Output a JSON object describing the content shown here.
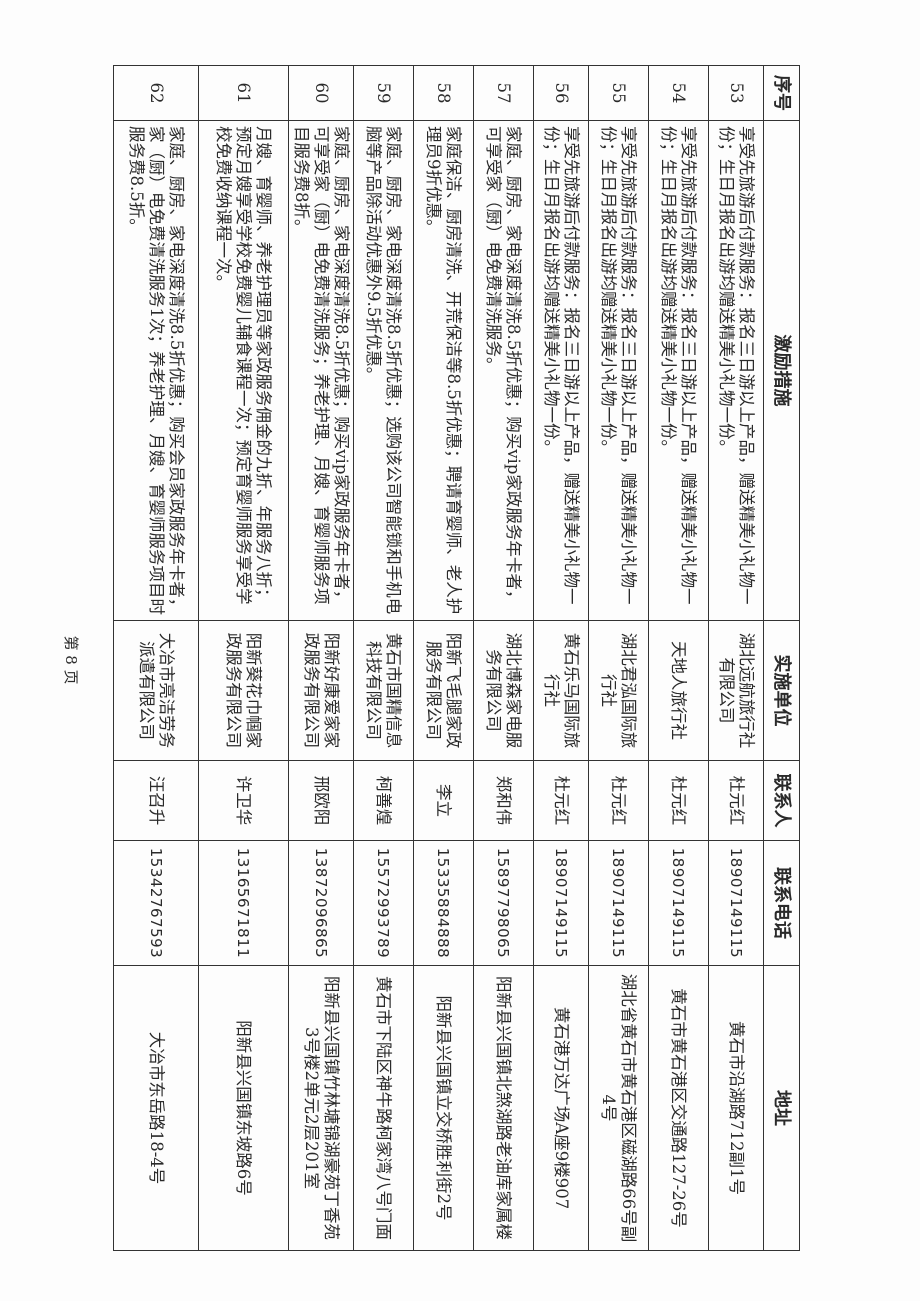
{
  "table": {
    "headers": [
      "序号",
      "激励措施",
      "实施单位",
      "联系人",
      "联系电话",
      "地址"
    ],
    "rows": [
      {
        "no": "53",
        "measure": "享受先旅游后付款服务：报名三日游以上产品，赠送精美小礼物一份；生日月报名出游均赠送精美小礼物一份。",
        "unit": "湖北远航旅行社有限公司",
        "contact": "杜元红",
        "phone": "18907149115",
        "address": "黄石市沿湖路712副1号"
      },
      {
        "no": "54",
        "measure": "享受先旅游后付款服务：报名三日游以上产品，赠送精美小礼物一份；生日月报名出游均赠送精美小礼物一份。",
        "unit": "天地人旅行社",
        "contact": "杜元红",
        "phone": "18907149115",
        "address": "黄石市黄石港区交通路127-26号"
      },
      {
        "no": "55",
        "measure": "享受先旅游后付款服务：报名三日游以上产品，赠送精美小礼物一份；生日月报名出游均赠送精美小礼物一份。",
        "unit": "湖北君泓国际旅行社",
        "contact": "杜元红",
        "phone": "18907149115",
        "address": "湖北省黄石市黄石港区磁湖路66号副4号"
      },
      {
        "no": "56",
        "measure": "享受先旅游后付款服务：报名三日游以上产品，赠送精美小礼物一份；生日月报名出游均赠送精美小礼物一份。",
        "unit": "黄石乐马国际旅行社",
        "contact": "杜元红",
        "phone": "18907149115",
        "address": "黄石港万达广场A座9楼907"
      },
      {
        "no": "57",
        "measure": "家庭、厨房、家电深度清洗8.5折优惠；购买vip家政服务年卡者，可享受家（厨）电免费清洗服务。",
        "unit": "湖北博森家电服务有限公司",
        "contact": "郑和伟",
        "phone": "15897798065",
        "address": "阳新县兴国镇北煞湖路老油库家属楼"
      },
      {
        "no": "58",
        "measure": "家庭保洁、厨房清洗、开荒保洁等8.5折优惠；聘请育婴师、老人护理员9折优惠。",
        "unit": "阳新飞毛腿家政服务有限公司",
        "contact": "李立",
        "phone": "15335884888",
        "address": "阳新县兴国镇立交桥胜利街2号"
      },
      {
        "no": "59",
        "measure": "家庭、厨房、家电深度清洗8.5折优惠；选购该公司智能锁和手机电脑等产品除活动优惠外9.5折优惠。",
        "unit": "黄石市国精信息科技有限公司",
        "contact": "柯善煌",
        "phone": "15572993789",
        "address": "黄石市下陆区神牛路柯家湾八号门面"
      },
      {
        "no": "60",
        "measure": "家庭、厨房、家电深度清洗8.5折优惠；购买vip家政服务年卡者，可享受家（厨）电免费清洗服务；养老护理、月嫂、育婴师服务项目服务费8折。",
        "unit": "阳新好康爱家家政服务有限公司",
        "contact": "邢欧阳",
        "phone": "13872096865",
        "address": "阳新县兴国镇竹林塘锦湖豪苑丁香苑3号楼2单元2层201室"
      },
      {
        "no": "61",
        "measure": "月嫂、育婴师、养老护理员等家政服务佣金的九折、年服务八折；预定月嫂享受学校免费婴儿辅食课程一次；预定育婴师服务享受学校免费收纳课程一次。",
        "unit": "阳新葵花巾帼家政服务有限公司",
        "contact": "许卫华",
        "phone": "13165671811",
        "address": "阳新县兴国镇东坡路6号"
      },
      {
        "no": "62",
        "measure": "家庭、厨房、家电深度清洗8.5折优惠；购买会员家政服务年卡者，家（厨）电免费清洗服务1次；养老护理、月嫂、育婴师服务项目时服务费8.5折。",
        "unit": "大冶市亮洁劳务派遣有限公司",
        "contact": "汪召升",
        "phone": "15342767593",
        "address": "大冶市东岳路18-4号"
      }
    ]
  },
  "footer": {
    "page_number": "第 8 页"
  }
}
